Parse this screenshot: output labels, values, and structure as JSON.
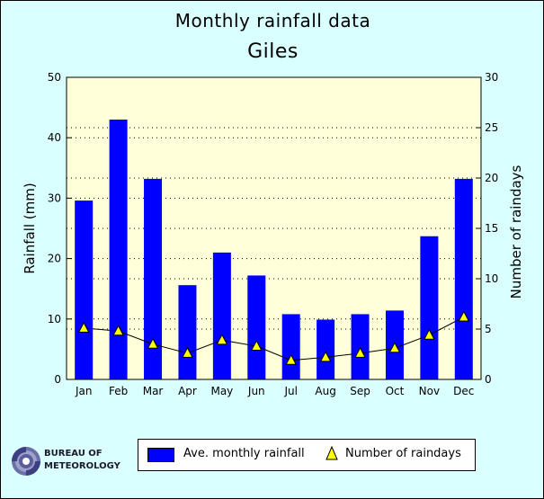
{
  "chart_data": {
    "type": "bar",
    "title": "Monthly rainfall data",
    "subtitle": "Giles",
    "categories": [
      "Jan",
      "Feb",
      "Mar",
      "Apr",
      "May",
      "Jun",
      "Jul",
      "Aug",
      "Sep",
      "Oct",
      "Nov",
      "Dec"
    ],
    "series": [
      {
        "name": "Ave. monthly rainfall",
        "type": "bar",
        "axis": "left",
        "color": "#0000ff",
        "values": [
          29.6,
          43.0,
          33.2,
          15.6,
          21.0,
          17.2,
          10.8,
          9.9,
          10.8,
          11.4,
          23.7,
          33.2
        ]
      },
      {
        "name": "Number of raindays",
        "type": "line",
        "axis": "right",
        "marker": "triangle",
        "marker_color": "#ffff00",
        "values": [
          5.1,
          4.8,
          3.5,
          2.6,
          3.9,
          3.3,
          1.9,
          2.2,
          2.6,
          3.1,
          4.4,
          6.2
        ]
      }
    ],
    "ylabel": "Rainfall (mm)",
    "y2label": "Number of raindays",
    "ylim": [
      0,
      50
    ],
    "y2lim": [
      0,
      30
    ],
    "yticks": [
      0,
      10,
      20,
      30,
      40,
      50
    ],
    "y2ticks": [
      0,
      5,
      10,
      15,
      20,
      25,
      30
    ],
    "grid": "dotted horizontal",
    "legend_position": "bottom",
    "plot_bg": "#ffffd9",
    "page_bg": "#d9ffff"
  },
  "logo": {
    "line1": "Bureau of",
    "line2": "Meteorology"
  }
}
